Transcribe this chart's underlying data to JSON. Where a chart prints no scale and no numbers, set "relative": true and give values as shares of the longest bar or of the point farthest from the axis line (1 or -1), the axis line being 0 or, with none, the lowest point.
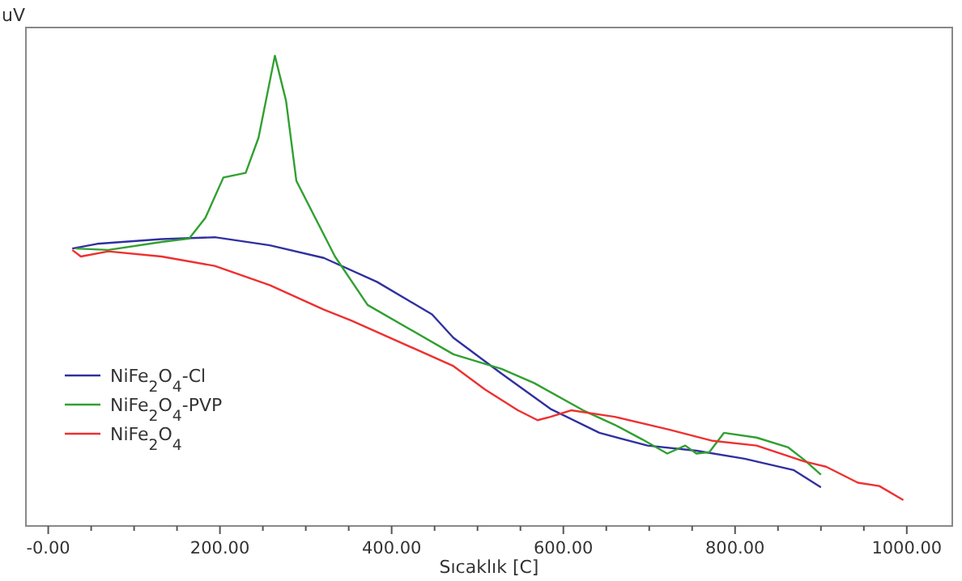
{
  "chart_data": {
    "type": "line",
    "relative": true,
    "ylabel": "uV",
    "xlabel": "Sıcaklık [C]",
    "xlim": [
      -26,
      1053
    ],
    "xticks": [
      {
        "value": 0,
        "label": "-0.00"
      },
      {
        "value": 50,
        "label": null
      },
      {
        "value": 100,
        "label": null
      },
      {
        "value": 150,
        "label": null
      },
      {
        "value": 200,
        "label": "200.00"
      },
      {
        "value": 250,
        "label": null
      },
      {
        "value": 300,
        "label": null
      },
      {
        "value": 350,
        "label": null
      },
      {
        "value": 400,
        "label": "400.00"
      },
      {
        "value": 450,
        "label": null
      },
      {
        "value": 500,
        "label": null
      },
      {
        "value": 550,
        "label": null
      },
      {
        "value": 600,
        "label": "600.00"
      },
      {
        "value": 650,
        "label": null
      },
      {
        "value": 700,
        "label": null
      },
      {
        "value": 750,
        "label": null
      },
      {
        "value": 800,
        "label": "800.00"
      },
      {
        "value": 850,
        "label": null
      },
      {
        "value": 900,
        "label": null
      },
      {
        "value": 950,
        "label": null
      },
      {
        "value": 1000,
        "label": "1000.00"
      }
    ],
    "legend": "bottom left",
    "grid": false,
    "line_style": "solid",
    "marker": "none",
    "series": [
      {
        "name": "NiFe$_{2}$O$_{4}$-Cl",
        "color": "#3030a0",
        "x": [
          28,
          57,
          132,
          194,
          258,
          321,
          383,
          447,
          472,
          528,
          585,
          642,
          698,
          755,
          811,
          868,
          900
        ],
        "values": [
          0.59,
          0.6,
          0.61,
          0.614,
          0.597,
          0.57,
          0.519,
          0.45,
          0.4,
          0.324,
          0.249,
          0.198,
          0.171,
          0.16,
          0.143,
          0.119,
          0.082
        ]
      },
      {
        "name": "NiFe$_{2}$O$_{4}$-PVP",
        "color": "#30a030",
        "x": [
          32,
          70,
          132,
          164,
          183,
          204,
          230,
          245,
          264,
          277,
          289,
          308,
          334,
          372,
          472,
          528,
          566,
          623,
          660,
          692,
          721,
          742,
          755,
          770,
          787,
          825,
          862,
          881,
          900
        ],
        "values": [
          0.59,
          0.587,
          0.604,
          0.611,
          0.655,
          0.741,
          0.751,
          0.826,
          1,
          0.904,
          0.734,
          0.666,
          0.573,
          0.47,
          0.365,
          0.334,
          0.304,
          0.246,
          0.215,
          0.184,
          0.154,
          0.171,
          0.154,
          0.157,
          0.198,
          0.188,
          0.167,
          0.14,
          0.109
        ]
      },
      {
        "name": "NiFe$_{2}$O$_{4}$",
        "color": "#ee3030",
        "x": [
          28,
          38,
          70,
          132,
          194,
          258,
          321,
          353,
          472,
          509,
          547,
          570,
          585,
          609,
          660,
          723,
          774,
          825,
          881,
          906,
          943,
          968,
          996
        ],
        "values": [
          0.587,
          0.573,
          0.584,
          0.573,
          0.553,
          0.512,
          0.46,
          0.437,
          0.34,
          0.29,
          0.246,
          0.225,
          0.232,
          0.246,
          0.232,
          0.205,
          0.181,
          0.171,
          0.137,
          0.126,
          0.092,
          0.085,
          0.055
        ]
      }
    ]
  }
}
